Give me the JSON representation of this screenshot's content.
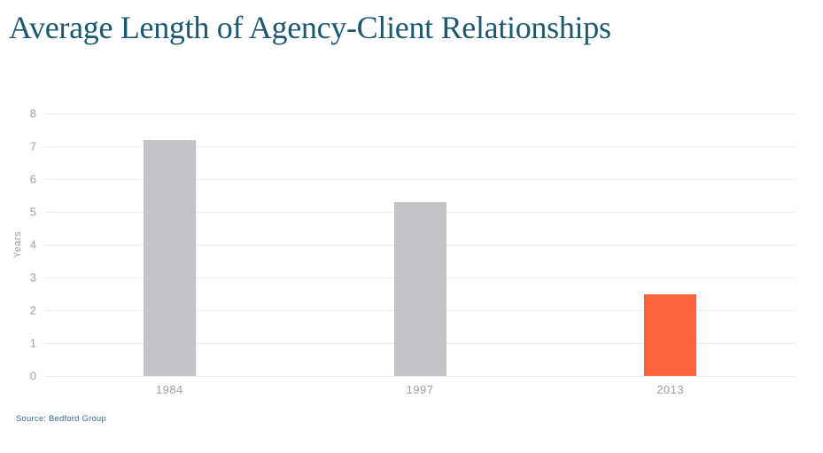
{
  "chart_data": {
    "type": "bar",
    "title": "Average Length of Agency-Client Relationships",
    "categories": [
      "1984",
      "1997",
      "2013"
    ],
    "values": [
      7.2,
      5.3,
      2.5
    ],
    "xlabel": "",
    "ylabel": "Years",
    "ylim": [
      0,
      8
    ],
    "ytick_step": 1,
    "yticks": [
      0,
      1,
      2,
      3,
      4,
      5,
      6,
      7,
      8
    ],
    "grid": true,
    "legend": false,
    "bar_colors": [
      "#C2C3C6",
      "#C2C3C6",
      "#F9643C"
    ],
    "source": "Source: Bedford Group"
  },
  "colors": {
    "background": "#FFFFFF",
    "title": "#1C5971",
    "source": "#2F6C8A",
    "axis_text": "#9B9DA0",
    "gridline": "#EAEAEA",
    "bar_gray": "#C2C3C6",
    "bar_highlight": "#F9643C"
  }
}
